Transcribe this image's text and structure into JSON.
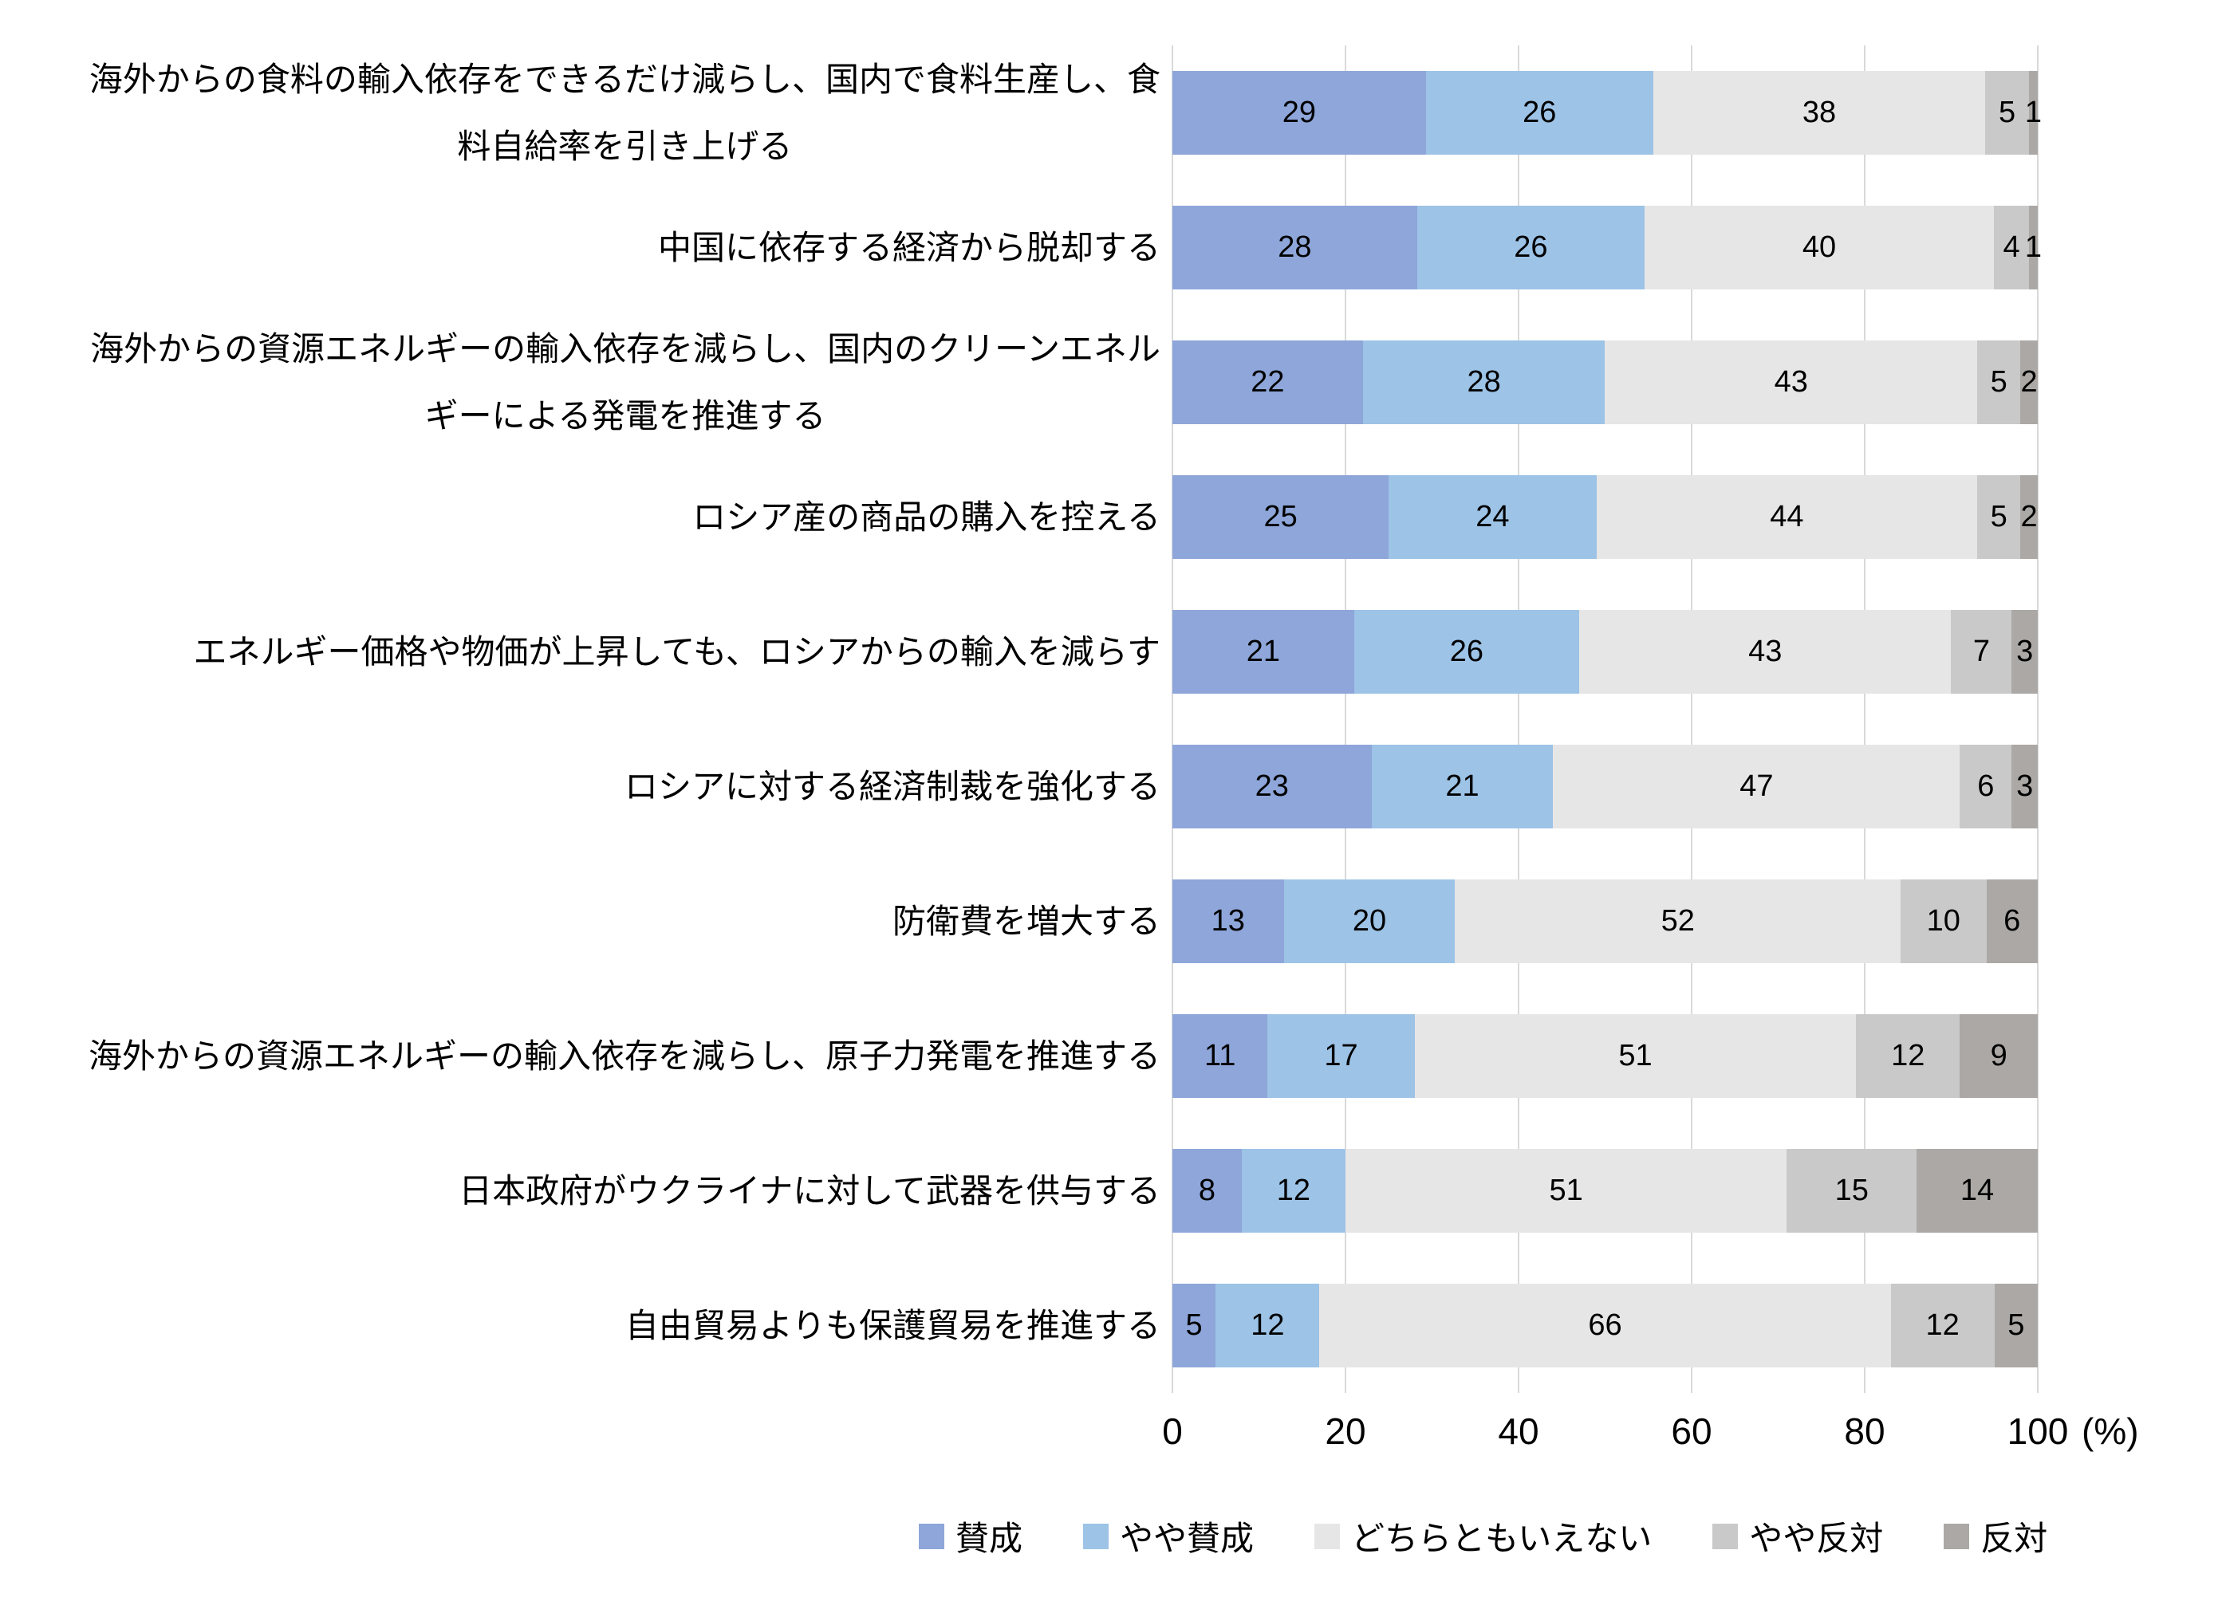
{
  "chart_data": {
    "type": "bar",
    "variant": "horizontal-stacked-percentage",
    "title": "",
    "xlabel": "",
    "ylabel": "",
    "unit_label": "(%)",
    "xlim": [
      0,
      100
    ],
    "x_tick_labels": [
      "0",
      "20",
      "40",
      "60",
      "80",
      "100"
    ],
    "grid": true,
    "grid_color": "#D9D9D9",
    "legend_position": "bottom",
    "series_names": [
      "賛成",
      "やや賛成",
      "どちらともいえない",
      "やや反対",
      "反対"
    ],
    "series_colors": [
      "#8EA6D9",
      "#9DC3E6",
      "#E7E6E6",
      "#C9C9C9",
      "#ABA8A5"
    ],
    "series_keys": [
      "agree",
      "somewhat-agree",
      "neutral",
      "somewhat-oppose",
      "oppose"
    ],
    "rows": [
      {
        "label": "海外からの食料の輸入依存をできるだけ減らし、国内で食料生産し、食\n料自給率を引き上げる",
        "values": [
          29,
          26,
          38,
          5,
          1
        ]
      },
      {
        "label": "中国に依存する経済から脱却する",
        "values": [
          28,
          26,
          40,
          4,
          1
        ]
      },
      {
        "label": "海外からの資源エネルギーの輸入依存を減らし、国内のクリーンエネル\nギーによる発電を推進する",
        "values": [
          22,
          28,
          43,
          5,
          2
        ]
      },
      {
        "label": "ロシア産の商品の購入を控える",
        "values": [
          25,
          24,
          44,
          5,
          2
        ]
      },
      {
        "label": "エネルギー価格や物価が上昇しても、ロシアからの輸入を減らす",
        "values": [
          21,
          26,
          43,
          7,
          3
        ]
      },
      {
        "label": "ロシアに対する経済制裁を強化する",
        "values": [
          23,
          21,
          47,
          6,
          3
        ]
      },
      {
        "label": "防衛費を増大する",
        "values": [
          13,
          20,
          52,
          10,
          6
        ]
      },
      {
        "label": "海外からの資源エネルギーの輸入依存を減らし、原子力発電を推進する",
        "values": [
          11,
          17,
          51,
          12,
          9
        ]
      },
      {
        "label": "日本政府がウクライナに対して武器を供与する",
        "values": [
          8,
          12,
          51,
          15,
          14
        ]
      },
      {
        "label": "自由貿易よりも保護貿易を推進する",
        "values": [
          5,
          12,
          66,
          12,
          5
        ]
      }
    ]
  }
}
